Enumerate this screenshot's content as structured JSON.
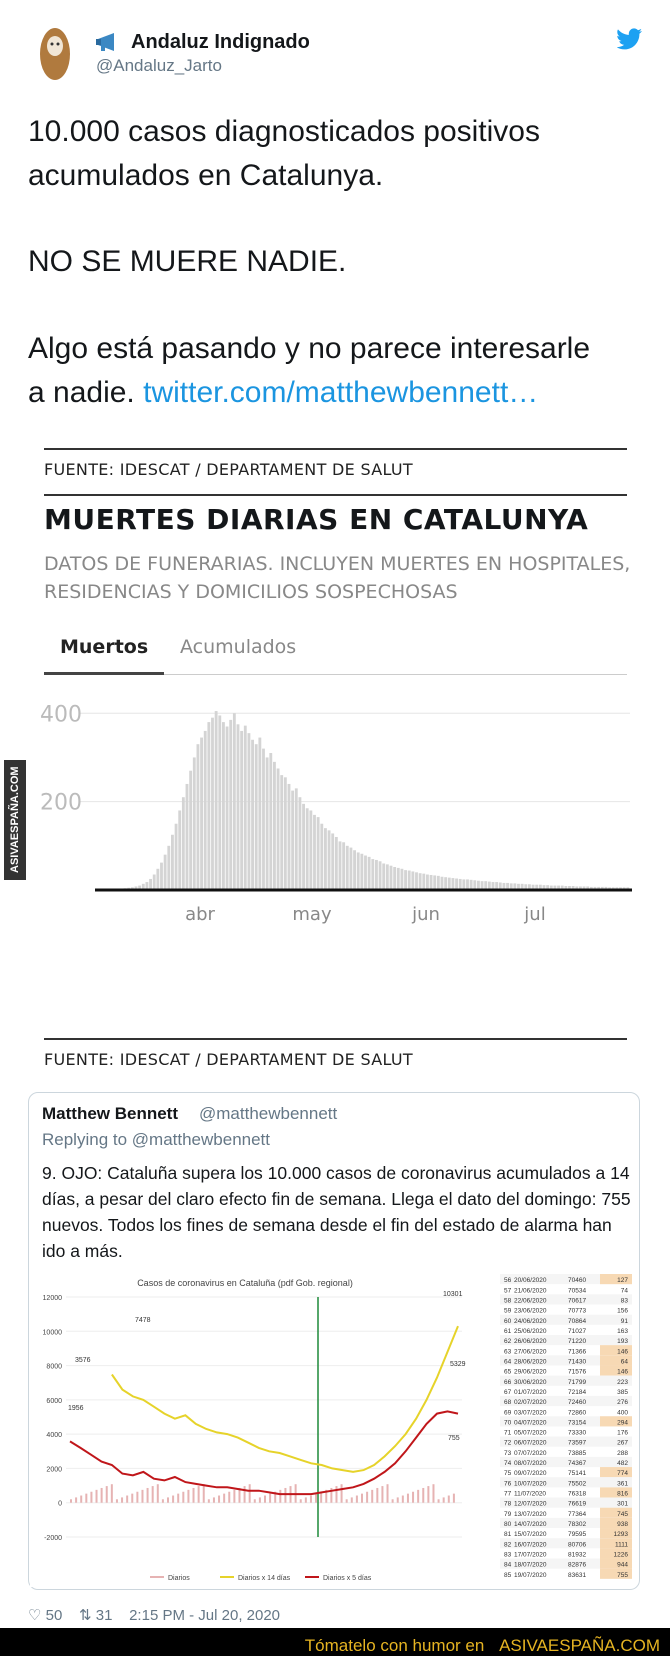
{
  "tweet": {
    "display_name": "Andaluz Indignado",
    "handle": "@Andaluz_Jarto",
    "text_line1": "10.000 casos diagnosticados positivos",
    "text_line2": "acumulados en Catalunya.",
    "text_line3": "NO SE MUERE NADIE.",
    "text_line4": "Algo está pasando y no parece interesarle",
    "text_line5_prefix": "a nadie.",
    "link": "twitter.com/matthewbennett…",
    "likes": "50",
    "retweets": "31",
    "timestamp": "2:15 PM - Jul 20, 2020",
    "icons": [
      "megaphone-icon",
      "twitter-bird-icon",
      "heart-icon",
      "retweet-icon"
    ]
  },
  "embedded_chart": {
    "source_top": "FUENTE: IDESCAT / DEPARTAMENT DE SALUT",
    "title": "MUERTES DIARIAS EN CATALUNYA",
    "subtitle": "DATOS DE FUNERARIAS. INCLUYEN MUERTES EN HOSPITALES, RESIDENCIAS Y DOMICILIOS SOSPECHOSAS",
    "tabs": [
      "Muertos",
      "Acumulados"
    ],
    "source_bottom": "FUENTE: IDESCAT / DEPARTAMENT DE SALUT"
  },
  "chart_data": [
    {
      "type": "bar",
      "title": "MUERTES DIARIAS EN CATALUNYA",
      "x_tick_labels": [
        "abr",
        "may",
        "jun",
        "jul"
      ],
      "y_tick_labels": [
        "200",
        "400"
      ],
      "ylim": [
        0,
        430
      ],
      "values": [
        3,
        4,
        5,
        6,
        8,
        10,
        14,
        18,
        25,
        35,
        48,
        62,
        80,
        100,
        125,
        150,
        180,
        210,
        240,
        270,
        300,
        330,
        345,
        360,
        380,
        390,
        405,
        395,
        380,
        370,
        385,
        400,
        375,
        360,
        372,
        355,
        340,
        330,
        345,
        320,
        300,
        310,
        290,
        275,
        260,
        255,
        240,
        225,
        230,
        210,
        195,
        185,
        180,
        170,
        165,
        150,
        140,
        135,
        128,
        120,
        110,
        108,
        100,
        96,
        90,
        85,
        82,
        78,
        75,
        70,
        68,
        65,
        60,
        58,
        55,
        52,
        50,
        48,
        45,
        44,
        42,
        40,
        38,
        37,
        35,
        34,
        33,
        32,
        30,
        29,
        28,
        27,
        26,
        25,
        24,
        24,
        23,
        22,
        21,
        20,
        20,
        19,
        18,
        18,
        17,
        16,
        16,
        15,
        15,
        14,
        14,
        13,
        13,
        12,
        12,
        12,
        11,
        11,
        10,
        10,
        10,
        10,
        9,
        9,
        9,
        8,
        8,
        8,
        8,
        7,
        7,
        7,
        7,
        7,
        6,
        6,
        6,
        6,
        6,
        6
      ]
    },
    {
      "type": "line",
      "title": "Casos de coronavirus en Cataluña (pdf Gob. regional)",
      "y_tick_labels": [
        "-2000",
        "0",
        "2000",
        "4000",
        "6000",
        "8000",
        "10000",
        "12000"
      ],
      "ylim": [
        -2000,
        12000
      ],
      "legend": [
        "Diarios",
        "Diarios x 14 días",
        "Diarios x 5 días"
      ],
      "annotations": [
        "7478",
        "3576",
        "1956",
        "10301",
        "5329",
        "755"
      ],
      "series": [
        {
          "name": "Diarios x 14 días",
          "values": [
            null,
            null,
            null,
            null,
            7478,
            6600,
            6200,
            6000,
            5600,
            5200,
            4900,
            5100,
            4600,
            4300,
            4100,
            4000,
            3800,
            3500,
            3200,
            3000,
            2900,
            2700,
            2500,
            2300,
            2200,
            2000,
            1900,
            1800,
            1900,
            2200,
            2700,
            3300,
            4000,
            4900,
            6000,
            7300,
            8800,
            10301
          ]
        },
        {
          "name": "Diarios x 5 días",
          "values": [
            3576,
            3200,
            2800,
            2400,
            2200,
            1700,
            1600,
            1800,
            1400,
            1300,
            1500,
            1200,
            1100,
            1000,
            900,
            900,
            800,
            700,
            700,
            600,
            500,
            500,
            500,
            500,
            600,
            700,
            800,
            900,
            1100,
            1400,
            1800,
            2300,
            3000,
            3800,
            4600,
            5200,
            5329,
            5200
          ]
        }
      ]
    },
    {
      "type": "table",
      "rows": [
        [
          "56",
          "20/06/2020",
          "70460",
          "127"
        ],
        [
          "57",
          "21/06/2020",
          "70534",
          "74"
        ],
        [
          "58",
          "22/06/2020",
          "70617",
          "83"
        ],
        [
          "59",
          "23/06/2020",
          "70773",
          "156"
        ],
        [
          "60",
          "24/06/2020",
          "70864",
          "91"
        ],
        [
          "61",
          "25/06/2020",
          "71027",
          "163"
        ],
        [
          "62",
          "26/06/2020",
          "71220",
          "193"
        ],
        [
          "63",
          "27/06/2020",
          "71366",
          "146"
        ],
        [
          "64",
          "28/06/2020",
          "71430",
          "64"
        ],
        [
          "65",
          "29/06/2020",
          "71576",
          "146"
        ],
        [
          "66",
          "30/06/2020",
          "71799",
          "223"
        ],
        [
          "67",
          "01/07/2020",
          "72184",
          "385"
        ],
        [
          "68",
          "02/07/2020",
          "72460",
          "276"
        ],
        [
          "69",
          "03/07/2020",
          "72860",
          "400"
        ],
        [
          "70",
          "04/07/2020",
          "73154",
          "294"
        ],
        [
          "71",
          "05/07/2020",
          "73330",
          "176"
        ],
        [
          "72",
          "06/07/2020",
          "73597",
          "267"
        ],
        [
          "73",
          "07/07/2020",
          "73885",
          "288"
        ],
        [
          "74",
          "08/07/2020",
          "74367",
          "482"
        ],
        [
          "75",
          "09/07/2020",
          "75141",
          "774"
        ],
        [
          "76",
          "10/07/2020",
          "75502",
          "361"
        ],
        [
          "77",
          "11/07/2020",
          "76318",
          "816"
        ],
        [
          "78",
          "12/07/2020",
          "76619",
          "301"
        ],
        [
          "79",
          "13/07/2020",
          "77364",
          "745"
        ],
        [
          "80",
          "14/07/2020",
          "78302",
          "938"
        ],
        [
          "81",
          "15/07/2020",
          "79595",
          "1293"
        ],
        [
          "82",
          "16/07/2020",
          "80706",
          "1111"
        ],
        [
          "83",
          "17/07/2020",
          "81932",
          "1226"
        ],
        [
          "84",
          "18/07/2020",
          "82876",
          "944"
        ],
        [
          "85",
          "19/07/2020",
          "83631",
          "755"
        ]
      ]
    }
  ],
  "quoted_tweet": {
    "name": "Matthew Bennett",
    "handle": "@matthewbennett",
    "replying": "Replying to @matthewbennett",
    "text": "9. OJO: Cataluña supera los 10.000 casos de coronavirus acumulados a 14 días, a pesar del claro efecto fin de semana. Llega el dato del domingo: 755 nuevos. Todos los fines de semana desde el fin del estado de alarma han ido a más."
  },
  "watermark": {
    "banner_text": "Tómatelo con humor en",
    "banner_site": "ASIVAESPAÑA.COM",
    "side_text": "ASIVAESPAÑA.COM"
  },
  "colors": {
    "link": "#1b95e0",
    "banner_bg": "#000000",
    "banner_text": "#e6b422",
    "bar_gray": "#d4d4d4",
    "line_yellow": "#e6d32a",
    "line_red": "#c0161a",
    "vertical_marker": "#1f8a3a"
  }
}
